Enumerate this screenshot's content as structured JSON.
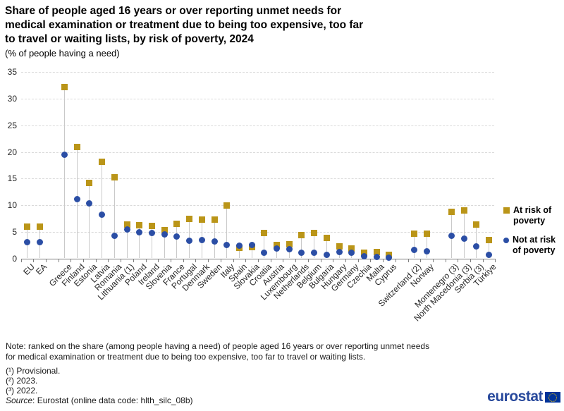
{
  "title": {
    "line1": "Share of people aged 16 years or over reporting unmet needs for",
    "line2": "medical examination or treatment due to being too expensive, too far",
    "line3": "to travel or waiting lists, by risk of poverty, 2024"
  },
  "subtitle": "(% of people having a need)",
  "legend": {
    "items": [
      {
        "marker": "square",
        "color": "#BA9518",
        "label_line1": "At risk of",
        "label_line2": "poverty"
      },
      {
        "marker": "circle",
        "color": "#2B4EA5",
        "label_line1": "Not at risk",
        "label_line2": "of poverty"
      }
    ]
  },
  "notes": {
    "line1": "Note: ranked on the share (among people having a need) of people aged 16 years or over reporting unmet needs",
    "line2": "for medical examination or treatment due to being too expensive, too far to travel or waiting lists.",
    "footnote1": "(¹) Provisional.",
    "footnote2": "(²) 2023.",
    "footnote3": "(³) 2022.",
    "source_label": "Source",
    "source_rest": ": Eurostat (online data code: hlth_silc_08b)"
  },
  "logo": {
    "text": "eurostat"
  },
  "chart_data": {
    "type": "scatter",
    "title": "Share of people aged 16 years or over reporting unmet needs for medical examination or treatment due to being too expensive, too far to travel or waiting lists, by risk of poverty, 2024",
    "subtitle": "(% of people having a need)",
    "ylabel": "% of people having a need",
    "ylim": [
      0,
      35
    ],
    "ytick_interval": 5,
    "grid": "horizontal-dashed",
    "legend_position": "right",
    "categories": [
      "EU",
      "EA",
      null,
      "Greece",
      "Finland",
      "Estonia",
      "Latvia",
      "Romania",
      "Lithuania (1)",
      "Poland",
      "Ireland",
      "Slovenia",
      "France",
      "Portugal",
      "Denmark",
      "Sweden",
      "Italy",
      "Spain",
      "Slovakia",
      "Croatia",
      "Austria",
      "Luxembourg",
      "Netherlands",
      "Belgium",
      "Bulgaria",
      "Hungary",
      "Germany",
      "Czechia",
      "Malta",
      "Cyprus",
      null,
      "Switzerland (2)",
      "Norway",
      null,
      "Montenegro (3)",
      "North Macedonia (3)",
      "Serbia (3)",
      "Türkiye"
    ],
    "series": [
      {
        "name": "At risk of poverty",
        "marker": "square",
        "color": "#BA9518",
        "values": [
          6.0,
          5.9,
          null,
          32.2,
          21.0,
          14.2,
          18.2,
          15.3,
          6.4,
          6.2,
          6.1,
          5.3,
          6.5,
          7.4,
          7.3,
          7.3,
          9.9,
          2.0,
          2.1,
          4.8,
          2.5,
          2.7,
          4.4,
          4.8,
          3.8,
          2.2,
          1.9,
          1.1,
          1.2,
          0.6,
          null,
          4.7,
          4.6,
          null,
          8.7,
          9.0,
          6.3,
          3.5
        ]
      },
      {
        "name": "Not at risk of poverty",
        "marker": "circle",
        "color": "#2B4EA5",
        "values": [
          3.1,
          3.1,
          null,
          19.5,
          11.1,
          10.3,
          8.2,
          4.3,
          5.4,
          4.9,
          4.8,
          4.5,
          4.1,
          3.3,
          3.5,
          3.2,
          2.5,
          2.4,
          2.5,
          1.1,
          1.9,
          1.7,
          1.1,
          1.1,
          0.7,
          1.2,
          1.0,
          0.4,
          0.2,
          0.1,
          null,
          1.6,
          1.3,
          null,
          4.3,
          3.7,
          2.2,
          0.7
        ]
      }
    ]
  }
}
